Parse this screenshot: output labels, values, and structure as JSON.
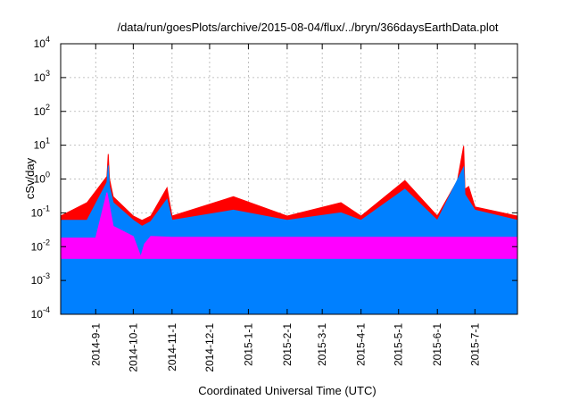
{
  "chart_data": {
    "type": "area",
    "title": "/data/run/goesPlots/archive/2015-08-04/flux/../bryn/366daysEarthData.plot",
    "xlabel": "Coordinated Universal Time (UTC)",
    "ylabel": "cSv/day",
    "yscale": "log",
    "ylim": [
      0.0001,
      10000
    ],
    "xlim": [
      "2014-08-04",
      "2015-08-04"
    ],
    "grid": true,
    "y_ticks": [
      {
        "value": 0.0001,
        "base": "10",
        "exp": "-4"
      },
      {
        "value": 0.001,
        "base": "10",
        "exp": "-3"
      },
      {
        "value": 0.01,
        "base": "10",
        "exp": "-2"
      },
      {
        "value": 0.1,
        "base": "10",
        "exp": "-1"
      },
      {
        "value": 1,
        "base": "10",
        "exp": "0"
      },
      {
        "value": 10,
        "base": "10",
        "exp": "1"
      },
      {
        "value": 100,
        "base": "10",
        "exp": "2"
      },
      {
        "value": 1000,
        "base": "10",
        "exp": "3"
      },
      {
        "value": 10000,
        "base": "10",
        "exp": "4"
      }
    ],
    "x_ticks": [
      {
        "date": "2014-09-01",
        "label": "2014-9-1"
      },
      {
        "date": "2014-10-01",
        "label": "2014-10-1"
      },
      {
        "date": "2014-11-01",
        "label": "2014-11-1"
      },
      {
        "date": "2014-12-01",
        "label": "2014-12-1"
      },
      {
        "date": "2015-01-01",
        "label": "2015-1-1"
      },
      {
        "date": "2015-02-01",
        "label": "2015-2-1"
      },
      {
        "date": "2015-03-01",
        "label": "2015-3-1"
      },
      {
        "date": "2015-04-01",
        "label": "2015-4-1"
      },
      {
        "date": "2015-05-01",
        "label": "2015-5-1"
      },
      {
        "date": "2015-06-01",
        "label": "2015-6-1"
      },
      {
        "date": "2015-07-01",
        "label": "2015-7-1"
      }
    ],
    "series": [
      {
        "color": "#ff00ff",
        "x": [
          "2014-08-04",
          "2014-09-01",
          "2014-09-10",
          "2014-09-15",
          "2014-10-01",
          "2014-10-07",
          "2014-10-10",
          "2014-10-15",
          "2014-11-01",
          "2014-12-01",
          "2015-01-01",
          "2015-02-01",
          "2015-03-01",
          "2015-04-01",
          "2015-05-01",
          "2015-06-01",
          "2015-07-01",
          "2015-08-04"
        ],
        "y": [
          0.018,
          0.018,
          0.4,
          0.04,
          0.02,
          0.005,
          0.012,
          0.02,
          0.019,
          0.019,
          0.019,
          0.019,
          0.019,
          0.019,
          0.019,
          0.019,
          0.019,
          0.019
        ],
        "min": [
          0.0045,
          0.0045,
          0.0045,
          0.0045,
          0.0045,
          0.0045,
          0.0045,
          0.0045,
          0.0045,
          0.0045,
          0.0045,
          0.0045,
          0.0045,
          0.0045,
          0.0045,
          0.0045,
          0.0045,
          0.0045
        ]
      },
      {
        "color": "#0080ff",
        "x": [
          "2014-08-04",
          "2014-08-25",
          "2014-09-10",
          "2014-09-11",
          "2014-09-12",
          "2014-09-15",
          "2014-10-01",
          "2014-10-08",
          "2014-10-15",
          "2014-10-28",
          "2014-11-01",
          "2014-12-20",
          "2015-02-01",
          "2015-03-16",
          "2015-04-01",
          "2015-05-06",
          "2015-06-01",
          "2015-06-22",
          "2015-06-23",
          "2015-07-01",
          "2015-08-04"
        ],
        "y": [
          0.06,
          0.06,
          0.8,
          2.5,
          0.6,
          0.2,
          0.06,
          0.04,
          0.055,
          0.25,
          0.06,
          0.12,
          0.06,
          0.1,
          0.06,
          0.5,
          0.06,
          2.2,
          0.35,
          0.12,
          0.06
        ]
      },
      {
        "color": "#ff0000",
        "x": [
          "2014-08-04",
          "2014-08-25",
          "2014-09-10",
          "2014-09-11",
          "2014-09-12",
          "2014-09-15",
          "2014-10-01",
          "2014-10-08",
          "2014-10-15",
          "2014-10-28",
          "2014-11-01",
          "2014-12-20",
          "2015-02-01",
          "2015-03-16",
          "2015-04-01",
          "2015-05-06",
          "2015-06-01",
          "2015-06-17",
          "2015-06-22",
          "2015-06-23",
          "2015-06-26",
          "2015-07-01",
          "2015-08-04"
        ],
        "y": [
          0.08,
          0.2,
          1.2,
          5.5,
          1.0,
          0.3,
          0.08,
          0.06,
          0.08,
          0.55,
          0.08,
          0.3,
          0.08,
          0.2,
          0.08,
          0.9,
          0.08,
          0.9,
          9.5,
          0.5,
          0.6,
          0.15,
          0.08
        ]
      }
    ]
  }
}
